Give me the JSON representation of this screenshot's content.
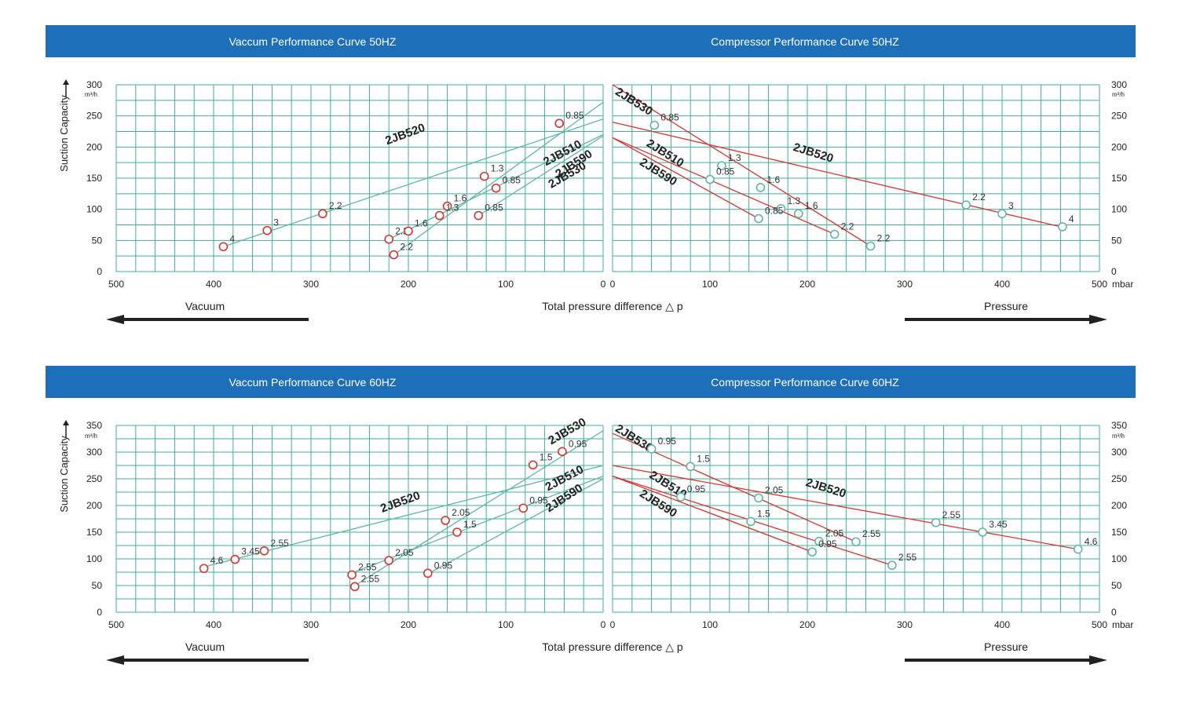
{
  "colors": {
    "header_bg": "#1d6fb8",
    "grid": "#3fae9f",
    "red": "#d7342f",
    "teal": "#5fb6a8",
    "text": "#222222"
  },
  "chart_data": [
    {
      "type": "line",
      "title": "Vaccum Performance Curve 50HZ",
      "xlabel": "Vacuum",
      "ylabel": "Suction Capacity",
      "y_unit": "m³/h",
      "xlim": [
        500,
        0
      ],
      "ylim": [
        0,
        300
      ],
      "x_ticks": [
        "500",
        "400",
        "300",
        "200",
        "100",
        "0"
      ],
      "y_ticks": [
        "0",
        "50",
        "100",
        "150",
        "200",
        "250",
        "300"
      ],
      "series": [
        {
          "name": "2JB520",
          "line": [
            [
              390,
              40
            ],
            [
              0,
              245
            ]
          ],
          "label_at": [
            202,
            215
          ],
          "label_angle": -20,
          "points": [
            [
              390,
              40
            ],
            [
              345,
              66
            ],
            [
              288,
              93
            ]
          ],
          "point_labels": [
            "4",
            "3",
            "2.2"
          ]
        },
        {
          "name": "2JB530",
          "line": [
            [
              215,
              27
            ],
            [
              0,
              272
            ]
          ],
          "label_at": [
            35,
            150
          ],
          "label_angle": -30,
          "points": [
            [
              215,
              27
            ],
            [
              160,
              105
            ],
            [
              122,
              153
            ],
            [
              45,
              238
            ]
          ],
          "point_labels": [
            "2.2",
            "1.6",
            "1.3",
            "0.85"
          ]
        },
        {
          "name": "2JB510",
          "line": [
            [
              220,
              52
            ],
            [
              0,
              220
            ]
          ],
          "label_at": [
            40,
            185
          ],
          "label_angle": -28,
          "points": [
            [
              220,
              52
            ],
            [
              200,
              65
            ],
            [
              168,
              90
            ],
            [
              110,
              134
            ]
          ],
          "point_labels": [
            "2.2",
            "1.6",
            "1.3",
            "0.85"
          ]
        },
        {
          "name": "2JB590",
          "line": [
            [
              128,
              90
            ],
            [
              0,
              218
            ]
          ],
          "label_at": [
            28,
            168
          ],
          "label_angle": -33,
          "points": [
            [
              128,
              90
            ]
          ],
          "point_labels": [
            "0.85"
          ]
        }
      ]
    },
    {
      "type": "line",
      "title": "Compressor Performance Curve 50HZ",
      "xlabel": "Pressure",
      "ylabel": "",
      "x_unit": "mbar",
      "y_unit": "m³/h",
      "xlim": [
        0,
        500
      ],
      "ylim": [
        0,
        300
      ],
      "x_ticks": [
        "0",
        "100",
        "200",
        "300",
        "400",
        "500"
      ],
      "y_ticks": [
        "0",
        "50",
        "100",
        "150",
        "200",
        "250",
        "300"
      ],
      "series": [
        {
          "name": "2JB530",
          "line": [
            [
              0,
              300
            ],
            [
              265,
              41
            ]
          ],
          "label_at": [
            20,
            268
          ],
          "label_angle": 32,
          "points": [
            [
              43,
              235
            ],
            [
              152,
              135
            ],
            [
              265,
              41
            ]
          ],
          "point_labels": [
            "0.85",
            "1.6",
            "2.2"
          ]
        },
        {
          "name": "2JB520",
          "line": [
            [
              0,
              240
            ],
            [
              460,
              72
            ]
          ],
          "label_at": [
            205,
            185
          ],
          "label_angle": 17,
          "points": [
            [
              363,
              107
            ],
            [
              400,
              93
            ],
            [
              462,
              72
            ]
          ],
          "point_labels": [
            "2.2",
            "3",
            "4"
          ]
        },
        {
          "name": "2JB510",
          "line": [
            [
              0,
              215
            ],
            [
              228,
              60
            ]
          ],
          "label_at": [
            52,
            185
          ],
          "label_angle": 32,
          "points": [
            [
              112,
              170
            ],
            [
              191,
              93
            ],
            [
              228,
              60
            ]
          ],
          "point_labels": [
            "1.3",
            "1.6",
            "2.2"
          ]
        },
        {
          "name": "2JB590",
          "line": [
            [
              0,
              215
            ],
            [
              150,
              85
            ]
          ],
          "label_at": [
            45,
            155
          ],
          "label_angle": 32,
          "points": [
            [
              100,
              148
            ],
            [
              173,
              101
            ],
            [
              150,
              85
            ]
          ],
          "point_labels": [
            "0.85",
            "1.3",
            "0.85"
          ]
        }
      ]
    },
    {
      "type": "line",
      "title": "Vaccum Performance Curve 60HZ",
      "xlabel": "Vacuum",
      "ylabel": "Suction Capacity",
      "y_unit": "m³/h",
      "xlim": [
        500,
        0
      ],
      "ylim": [
        0,
        350
      ],
      "x_ticks": [
        "500",
        "400",
        "300",
        "200",
        "100",
        "0"
      ],
      "y_ticks": [
        "0",
        "50",
        "100",
        "150",
        "200",
        "250",
        "300",
        "350"
      ],
      "series": [
        {
          "name": "2JB520",
          "line": [
            [
              410,
              85
            ],
            [
              0,
              275
            ]
          ],
          "label_at": [
            207,
            200
          ],
          "label_angle": -20,
          "points": [
            [
              410,
              82
            ],
            [
              378,
              99
            ],
            [
              348,
              115
            ]
          ],
          "point_labels": [
            "4.6",
            "3.45",
            "2.55"
          ]
        },
        {
          "name": "2JB530",
          "line": [
            [
              255,
              50
            ],
            [
              0,
              340
            ]
          ],
          "label_at": [
            35,
            333
          ],
          "label_angle": -30,
          "points": [
            [
              255,
              48
            ],
            [
              162,
              172
            ],
            [
              72,
              276
            ],
            [
              42,
              301
            ]
          ],
          "point_labels": [
            "2.55",
            "2.05",
            "1.5",
            "0.95"
          ]
        },
        {
          "name": "2JB510",
          "line": [
            [
              260,
              72
            ],
            [
              0,
              255
            ]
          ],
          "label_at": [
            38,
            245
          ],
          "label_angle": -28,
          "points": [
            [
              258,
              70
            ],
            [
              220,
              97
            ],
            [
              150,
              150
            ],
            [
              82,
              195
            ]
          ],
          "point_labels": [
            "2.55",
            "2.05",
            "1.5",
            "0.95"
          ]
        },
        {
          "name": "2JB590",
          "line": [
            [
              180,
              72
            ],
            [
              0,
              250
            ]
          ],
          "label_at": [
            38,
            208
          ],
          "label_angle": -33,
          "points": [
            [
              180,
              73
            ]
          ],
          "point_labels": [
            "0.95"
          ]
        }
      ]
    },
    {
      "type": "line",
      "title": "Compressor Performance Curve 60HZ",
      "xlabel": "Pressure",
      "ylabel": "",
      "x_unit": "mbar",
      "y_unit": "m³/h",
      "xlim": [
        0,
        500
      ],
      "ylim": [
        0,
        350
      ],
      "x_ticks": [
        "0",
        "100",
        "200",
        "300",
        "400",
        "500"
      ],
      "y_ticks": [
        "0",
        "50",
        "100",
        "150",
        "200",
        "250",
        "300",
        "350"
      ],
      "series": [
        {
          "name": "2JB530",
          "line": [
            [
              0,
              335
            ],
            [
              250,
              132
            ]
          ],
          "label_at": [
            20,
            320
          ],
          "label_angle": 32,
          "points": [
            [
              40,
              306
            ],
            [
              80,
              273
            ],
            [
              150,
              214
            ],
            [
              250,
              132
            ]
          ],
          "point_labels": [
            "0.95",
            "1.5",
            "2.05",
            "2.55"
          ]
        },
        {
          "name": "2JB520",
          "line": [
            [
              0,
              275
            ],
            [
              478,
              118
            ]
          ],
          "label_at": [
            218,
            226
          ],
          "label_angle": 17,
          "points": [
            [
              332,
              168
            ],
            [
              380,
              150
            ],
            [
              478,
              118
            ]
          ],
          "point_labels": [
            "2.55",
            "3.45",
            "4.6"
          ]
        },
        {
          "name": "2JB510",
          "line": [
            [
              0,
              255
            ],
            [
              287,
              88
            ]
          ],
          "label_at": [
            55,
            233
          ],
          "label_angle": 32,
          "points": [
            [
              70,
              216
            ],
            [
              142,
              170
            ],
            [
              212,
              133
            ],
            [
              287,
              88
            ]
          ],
          "point_labels": [
            "0.95",
            "1.5",
            "2.05",
            "2.55"
          ]
        },
        {
          "name": "2JB590",
          "line": [
            [
              0,
              255
            ],
            [
              205,
              113
            ]
          ],
          "label_at": [
            45,
            198
          ],
          "label_angle": 32,
          "points": [
            [
              205,
              113
            ]
          ],
          "point_labels": [
            "0.95"
          ]
        }
      ]
    }
  ],
  "x_title": "Total pressure difference △ p"
}
